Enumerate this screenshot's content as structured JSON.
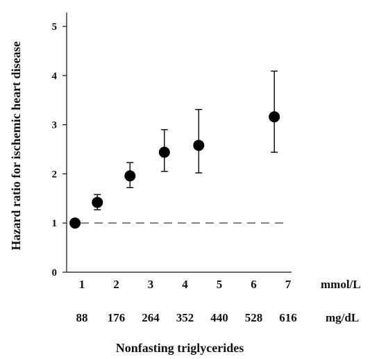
{
  "chart_data": {
    "type": "scatter",
    "title": "",
    "ylabel": "Hazard ratio for ischemic heart disease",
    "xlabel": "Nonfasting triglycerides",
    "x_units": [
      "mmol/L",
      "mg/dL"
    ],
    "xlim": [
      0.75,
      7
    ],
    "ylim": [
      0,
      5
    ],
    "y_ticks": [
      0,
      1,
      2,
      3,
      4,
      5
    ],
    "x_ticks_mmol": [
      1,
      2,
      3,
      4,
      5,
      6,
      7
    ],
    "x_ticks_mgdl": [
      88,
      176,
      264,
      352,
      440,
      528,
      616
    ],
    "reference_line": {
      "y": 1,
      "style": "dashed"
    },
    "grid": false,
    "series": [
      {
        "points": [
          {
            "x": 0.8,
            "y": 1.0,
            "lower": 1.0,
            "upper": 1.0
          },
          {
            "x": 1.45,
            "y": 1.42,
            "lower": 1.27,
            "upper": 1.58
          },
          {
            "x": 2.4,
            "y": 1.96,
            "lower": 1.72,
            "upper": 2.23
          },
          {
            "x": 3.4,
            "y": 2.44,
            "lower": 2.05,
            "upper": 2.9
          },
          {
            "x": 4.4,
            "y": 2.58,
            "lower": 2.02,
            "upper": 3.31
          },
          {
            "x": 6.6,
            "y": 3.16,
            "lower": 2.44,
            "upper": 4.09
          }
        ]
      }
    ]
  }
}
